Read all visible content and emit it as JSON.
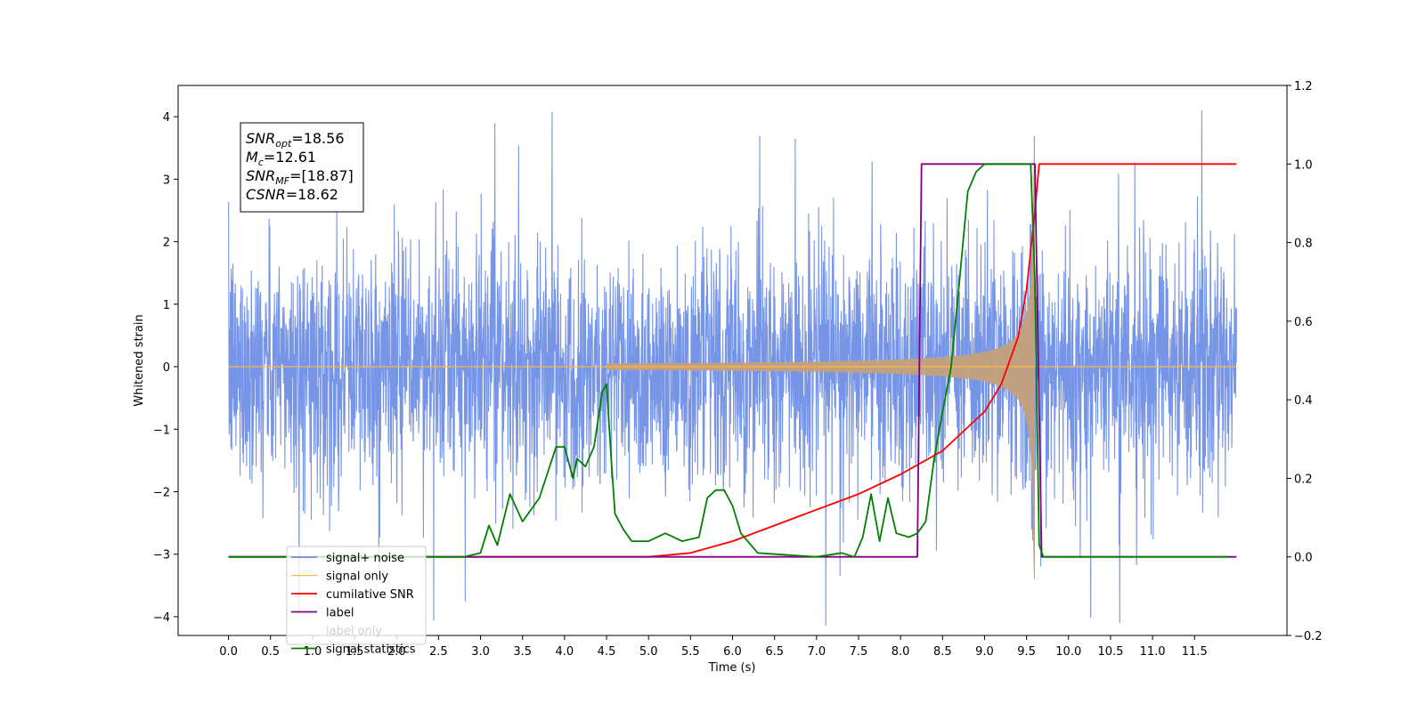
{
  "chart_data": {
    "type": "line",
    "xlabel": "Time (s)",
    "ylabel": "Whitened strain",
    "xlim": [
      -0.6,
      12.6
    ],
    "ylim": [
      -4.3,
      4.5
    ],
    "y2lim": [
      -0.2,
      1.2
    ],
    "x_ticks": [
      "0.0",
      "0.5",
      "1.0",
      "1.5",
      "2.0",
      "2.5",
      "3.0",
      "3.5",
      "4.0",
      "4.5",
      "5.0",
      "5.5",
      "6.0",
      "6.5",
      "7.0",
      "7.5",
      "8.0",
      "8.5",
      "9.0",
      "9.5",
      "10.0",
      "10.5",
      "11.0",
      "11.5"
    ],
    "y_ticks": [
      "4",
      "3",
      "2",
      "1",
      "0",
      "−1",
      "−2",
      "−3",
      "−4"
    ],
    "y2_ticks": [
      "1.2",
      "1.0",
      "0.8",
      "0.6",
      "0.4",
      "0.2",
      "0.0",
      "−0.2"
    ],
    "grid": false,
    "legend_position": "lower-left",
    "annotation": [
      {
        "base": "SNR",
        "sub": "opt",
        "value": "=18.56"
      },
      {
        "base": "M",
        "sub": "c",
        "value": "=12.61"
      },
      {
        "base": "SNR",
        "sub": "MF",
        "value": "=[18.87]"
      },
      {
        "base": "CSNR",
        "sub": "",
        "value": "=18.62"
      }
    ],
    "series": [
      {
        "name": "signal+ noise",
        "axis": "left",
        "color": "#6f8fe6",
        "description_kind": "noise",
        "x_range": [
          0.0,
          12.0
        ],
        "amplitude_typical": 1.3,
        "amplitude_peak": 4.1
      },
      {
        "name": "signal only",
        "axis": "left",
        "color": "#ffb347",
        "description_kind": "chirp",
        "chirp_start": 4.5,
        "merger_time": 9.6,
        "peak_amplitude": 3.4
      },
      {
        "name": "cumilative SNR",
        "axis": "right",
        "color": "#ff0000",
        "x": [
          0.0,
          5.0,
          5.5,
          6.0,
          6.5,
          7.0,
          7.5,
          8.0,
          8.5,
          9.0,
          9.2,
          9.4,
          9.5,
          9.6,
          9.65,
          12.0
        ],
        "y": [
          0.0,
          0.0,
          0.01,
          0.04,
          0.08,
          0.12,
          0.16,
          0.21,
          0.27,
          0.37,
          0.44,
          0.56,
          0.68,
          0.88,
          1.0,
          1.0
        ]
      },
      {
        "name": "label",
        "axis": "right",
        "color": "#800080",
        "x": [
          0.0,
          8.2,
          8.25,
          9.6,
          9.68,
          12.0
        ],
        "y": [
          0.0,
          0.0,
          1.0,
          1.0,
          0.0,
          0.0
        ]
      },
      {
        "name": "label only",
        "axis": "right",
        "color": "#ffffff",
        "x": [],
        "y": []
      },
      {
        "name": "signal statistics",
        "axis": "right",
        "color": "#008000",
        "x": [
          0.0,
          2.8,
          3.0,
          3.1,
          3.2,
          3.35,
          3.5,
          3.7,
          3.9,
          4.0,
          4.1,
          4.15,
          4.25,
          4.35,
          4.45,
          4.5,
          4.55,
          4.6,
          4.7,
          4.8,
          5.0,
          5.2,
          5.3,
          5.4,
          5.6,
          5.7,
          5.8,
          5.9,
          6.0,
          6.1,
          6.3,
          7.0,
          7.3,
          7.45,
          7.55,
          7.65,
          7.75,
          7.85,
          7.95,
          8.1,
          8.2,
          8.3,
          8.4,
          8.5,
          8.6,
          8.7,
          8.8,
          8.9,
          9.0,
          9.1,
          9.3,
          9.55,
          9.6,
          9.65,
          9.7,
          11.9
        ],
        "y": [
          0.0,
          0.0,
          0.01,
          0.08,
          0.03,
          0.16,
          0.09,
          0.15,
          0.28,
          0.28,
          0.2,
          0.25,
          0.23,
          0.28,
          0.42,
          0.44,
          0.27,
          0.11,
          0.07,
          0.04,
          0.04,
          0.06,
          0.05,
          0.04,
          0.05,
          0.15,
          0.17,
          0.17,
          0.13,
          0.06,
          0.01,
          0.0,
          0.01,
          0.0,
          0.05,
          0.16,
          0.04,
          0.15,
          0.06,
          0.05,
          0.06,
          0.09,
          0.25,
          0.37,
          0.48,
          0.7,
          0.93,
          0.98,
          1.0,
          1.0,
          1.0,
          1.0,
          0.7,
          0.03,
          0.0,
          0.0
        ]
      }
    ]
  }
}
